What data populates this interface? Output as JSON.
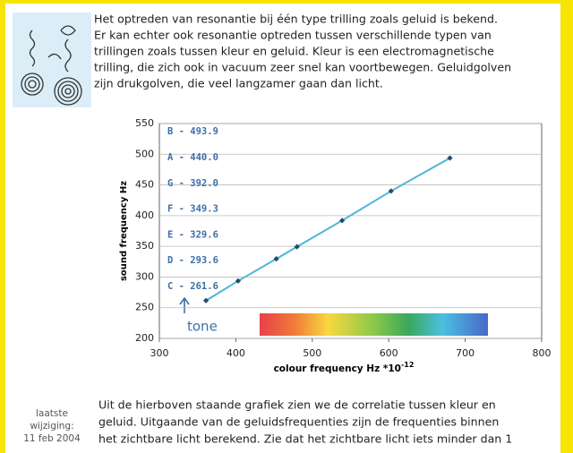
{
  "intro": {
    "lines": [
      "Het optreden van resonantie bij één type trilling zoals geluid is bekend.",
      "Er kan echter ook resonantie optreden tussen verschillende typen van",
      "trillingen zoals tussen kleur en geluid. Kleur is een electromagnetische",
      "trilling, die zich ook in vacuum zeer snel kan voortbewegen. Geluidgolven",
      "zijn drukgolven, die veel langzamer gaan dan licht."
    ]
  },
  "chart_data": {
    "type": "line",
    "x": [
      361,
      403,
      453,
      480,
      539,
      603,
      680
    ],
    "series": [
      {
        "color": "#4db6d6",
        "values": [
          261.6,
          293.6,
          329.6,
          349.3,
          392.0,
          440.0,
          493.9
        ],
        "value_labels": [
          "C - 261.6",
          "D - 293.6",
          "E - 329.6",
          "F - 349.3",
          "G - 392.0",
          "A - 440.0",
          "B - 493.9"
        ]
      }
    ],
    "xlim": [
      300,
      800
    ],
    "xticks": [
      300,
      400,
      500,
      600,
      700,
      800
    ],
    "ylim": [
      200,
      550
    ],
    "yticks": [
      200,
      250,
      300,
      350,
      400,
      450,
      500,
      550
    ],
    "grid": true,
    "y_label": "sound frequency Hz",
    "x_label": "colour frequency Hz *10",
    "x_label_exponent": "-12",
    "annotation": "tone"
  },
  "footer": {
    "date_label": [
      "laatste",
      "wijziging:",
      "11 feb 2004"
    ],
    "lines": [
      "Uit de hierboven staande grafiek zien we de correlatie tussen kleur en",
      "geluid. Uitgaande van de geluidsfrequenties zijn de frequenties binnen",
      "het zichtbare licht berekend. Zie dat het zichtbare licht iets minder dan 1"
    ]
  }
}
